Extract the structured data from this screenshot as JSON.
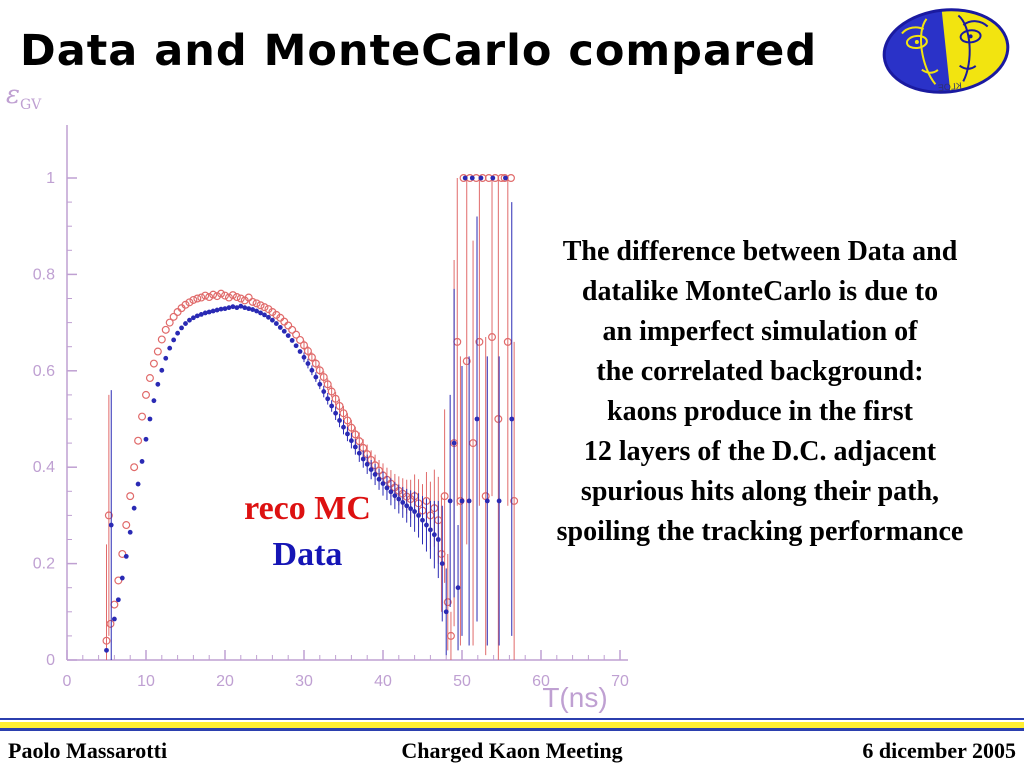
{
  "slide": {
    "title": "Data and MonteCarlo compared",
    "body_lines": [
      "The difference between Data and",
      "datalike MonteCarlo is due to",
      "an imperfect simulation of",
      "the correlated background:",
      "kaons produce in the first",
      "12 layers of the D.C. adjacent",
      "spurious hits along their path,",
      "spoiling the tracking performance"
    ],
    "footer": {
      "author": "Paolo Massarotti",
      "meeting": "Charged Kaon Meeting",
      "date": "6 dicember 2005"
    }
  },
  "legend": {
    "mc": "reco MC",
    "data": "Data"
  },
  "axis": {
    "ylabel_main": "ε",
    "ylabel_sub": "GV",
    "xlabel": "T(ns)"
  },
  "colors": {
    "mc_marker": "#e06a6a",
    "data_marker": "#2a2ab4",
    "axis": "#bfa0d2",
    "legend_mc": "#dd1111",
    "legend_data": "#1515b5",
    "rule_blue": "#2b3fae",
    "rule_yellow": "#ffee33"
  },
  "chart_data": {
    "type": "scatter",
    "title": "",
    "xlabel": "T(ns)",
    "ylabel": "epsilon_GV (efficiency)",
    "xlim": [
      0,
      70
    ],
    "ylim": [
      0,
      1
    ],
    "grid": false,
    "legend_position": "inside-center-left",
    "xticks": [
      0,
      10,
      20,
      30,
      40,
      50,
      60,
      70
    ],
    "yticks": [
      0,
      0.2,
      0.4,
      0.6,
      0.8,
      1
    ],
    "ytick_labels": [
      "0",
      "0.2",
      "0.4",
      "0.6",
      "0.8",
      "1"
    ],
    "series": [
      {
        "name": "reco MC",
        "marker": "open-circle",
        "color": "#e06a6a",
        "points": [
          [
            5,
            0.04,
            0.2
          ],
          [
            5.3,
            0.3,
            0.25
          ],
          [
            5.5,
            0.075,
            0
          ],
          [
            6,
            0.115,
            0
          ],
          [
            6.5,
            0.165,
            0
          ],
          [
            7,
            0.22,
            0
          ],
          [
            7.5,
            0.28,
            0
          ],
          [
            8,
            0.34,
            0
          ],
          [
            8.5,
            0.4,
            0
          ],
          [
            9,
            0.455,
            0
          ],
          [
            9.5,
            0.505,
            0
          ],
          [
            10,
            0.55,
            0
          ],
          [
            10.5,
            0.585,
            0
          ],
          [
            11,
            0.615,
            0
          ],
          [
            11.5,
            0.64,
            0
          ],
          [
            12,
            0.665,
            0
          ],
          [
            12.5,
            0.685,
            0
          ],
          [
            13,
            0.7,
            0
          ],
          [
            13.5,
            0.712,
            0
          ],
          [
            14,
            0.722,
            0
          ],
          [
            14.5,
            0.73,
            0
          ],
          [
            15,
            0.737,
            0
          ],
          [
            15.5,
            0.742,
            0
          ],
          [
            16,
            0.747,
            0
          ],
          [
            16.5,
            0.75,
            0
          ],
          [
            17,
            0.752,
            0
          ],
          [
            17.5,
            0.756,
            0
          ],
          [
            18,
            0.753,
            0
          ],
          [
            18.5,
            0.758,
            0
          ],
          [
            19,
            0.755,
            0
          ],
          [
            19.5,
            0.76,
            0
          ],
          [
            20,
            0.756,
            0
          ],
          [
            20.5,
            0.752,
            0
          ],
          [
            21,
            0.757,
            0
          ],
          [
            21.5,
            0.753,
            0
          ],
          [
            22,
            0.75,
            0
          ],
          [
            22.5,
            0.746,
            0
          ],
          [
            23,
            0.752,
            0
          ],
          [
            23.5,
            0.743,
            0
          ],
          [
            24,
            0.74,
            0
          ],
          [
            24.5,
            0.736,
            0
          ],
          [
            25,
            0.732,
            0
          ],
          [
            25.5,
            0.728,
            0
          ],
          [
            26,
            0.722,
            0
          ],
          [
            26.5,
            0.716,
            0
          ],
          [
            27,
            0.71,
            0
          ],
          [
            27.5,
            0.702,
            0
          ],
          [
            28,
            0.694,
            0
          ],
          [
            28.5,
            0.685,
            0
          ],
          [
            29,
            0.675,
            0
          ],
          [
            29.5,
            0.664,
            0
          ],
          [
            30,
            0.653,
            0.01
          ],
          [
            30.5,
            0.641,
            0.01
          ],
          [
            31,
            0.628,
            0.01
          ],
          [
            31.5,
            0.615,
            0.01
          ],
          [
            32,
            0.601,
            0.01
          ],
          [
            32.5,
            0.587,
            0.012
          ],
          [
            33,
            0.572,
            0.012
          ],
          [
            33.5,
            0.557,
            0.012
          ],
          [
            34,
            0.542,
            0.014
          ],
          [
            34.5,
            0.527,
            0.014
          ],
          [
            35,
            0.512,
            0.015
          ],
          [
            35.5,
            0.497,
            0.015
          ],
          [
            36,
            0.482,
            0.016
          ],
          [
            36.5,
            0.468,
            0.016
          ],
          [
            37,
            0.454,
            0.018
          ],
          [
            37.5,
            0.44,
            0.018
          ],
          [
            38,
            0.427,
            0.02
          ],
          [
            38.5,
            0.415,
            0.02
          ],
          [
            39,
            0.404,
            0.022
          ],
          [
            39.5,
            0.393,
            0.022
          ],
          [
            40,
            0.383,
            0.025
          ],
          [
            40.5,
            0.374,
            0.025
          ],
          [
            41,
            0.366,
            0.028
          ],
          [
            41.5,
            0.358,
            0.028
          ],
          [
            42,
            0.351,
            0.03
          ],
          [
            42.5,
            0.345,
            0.032
          ],
          [
            43,
            0.339,
            0.035
          ],
          [
            43.5,
            0.334,
            0.04
          ],
          [
            44,
            0.34,
            0.045
          ],
          [
            44.5,
            0.325,
            0.05
          ],
          [
            45,
            0.31,
            0.055
          ],
          [
            45.5,
            0.33,
            0.06
          ],
          [
            46,
            0.3,
            0.07
          ],
          [
            46.5,
            0.315,
            0.08
          ],
          [
            47,
            0.29,
            0.09
          ],
          [
            47.4,
            0.22,
            0.12
          ],
          [
            47.8,
            0.34,
            0.18
          ],
          [
            48.2,
            0.12,
            0.1
          ],
          [
            48.6,
            0.05,
            0.05
          ],
          [
            49,
            0.45,
            0.38
          ],
          [
            49.4,
            0.66,
            0.34
          ],
          [
            49.8,
            0.33,
            0.3
          ],
          [
            50.2,
            1,
            0
          ],
          [
            50.6,
            0.62,
            0.38
          ],
          [
            51,
            1,
            0
          ],
          [
            51.4,
            0.45,
            0.42
          ],
          [
            51.8,
            1,
            0
          ],
          [
            52.2,
            0.66,
            0.34
          ],
          [
            52.6,
            1,
            0
          ],
          [
            53,
            0.34,
            0.33
          ],
          [
            53.4,
            1,
            0
          ],
          [
            53.8,
            0.67,
            0.33
          ],
          [
            54.2,
            1,
            0
          ],
          [
            54.6,
            0.5,
            0.5
          ],
          [
            55,
            1,
            0
          ],
          [
            55.4,
            1,
            0
          ],
          [
            55.8,
            0.66,
            0.34
          ],
          [
            56.2,
            1,
            0
          ],
          [
            56.6,
            0.33,
            0.33
          ]
        ]
      },
      {
        "name": "Data",
        "marker": "filled-circle",
        "color": "#2a2ab4",
        "points": [
          [
            5,
            0.02,
            0
          ],
          [
            5.6,
            0.28,
            0.28
          ],
          [
            6,
            0.085,
            0
          ],
          [
            6.5,
            0.125,
            0
          ],
          [
            7,
            0.17,
            0
          ],
          [
            7.5,
            0.215,
            0
          ],
          [
            8,
            0.265,
            0
          ],
          [
            8.5,
            0.315,
            0
          ],
          [
            9,
            0.365,
            0
          ],
          [
            9.5,
            0.412,
            0
          ],
          [
            10,
            0.458,
            0
          ],
          [
            10.5,
            0.5,
            0
          ],
          [
            11,
            0.538,
            0
          ],
          [
            11.5,
            0.572,
            0
          ],
          [
            12,
            0.601,
            0
          ],
          [
            12.5,
            0.626,
            0
          ],
          [
            13,
            0.647,
            0
          ],
          [
            13.5,
            0.664,
            0
          ],
          [
            14,
            0.678,
            0
          ],
          [
            14.5,
            0.689,
            0
          ],
          [
            15,
            0.698,
            0
          ],
          [
            15.5,
            0.705,
            0
          ],
          [
            16,
            0.71,
            0
          ],
          [
            16.5,
            0.714,
            0
          ],
          [
            17,
            0.717,
            0
          ],
          [
            17.5,
            0.72,
            0
          ],
          [
            18,
            0.722,
            0
          ],
          [
            18.5,
            0.724,
            0
          ],
          [
            19,
            0.726,
            0
          ],
          [
            19.5,
            0.728,
            0
          ],
          [
            20,
            0.729,
            0
          ],
          [
            20.5,
            0.731,
            0
          ],
          [
            21,
            0.733,
            0
          ],
          [
            21.5,
            0.731,
            0
          ],
          [
            22,
            0.734,
            0
          ],
          [
            22.5,
            0.731,
            0
          ],
          [
            23,
            0.729,
            0
          ],
          [
            23.5,
            0.727,
            0
          ],
          [
            24,
            0.724,
            0
          ],
          [
            24.5,
            0.72,
            0
          ],
          [
            25,
            0.716,
            0
          ],
          [
            25.5,
            0.711,
            0
          ],
          [
            26,
            0.705,
            0
          ],
          [
            26.5,
            0.698,
            0
          ],
          [
            27,
            0.69,
            0
          ],
          [
            27.5,
            0.682,
            0
          ],
          [
            28,
            0.673,
            0
          ],
          [
            28.5,
            0.663,
            0
          ],
          [
            29,
            0.652,
            0
          ],
          [
            29.5,
            0.64,
            0
          ],
          [
            30,
            0.628,
            0.01
          ],
          [
            30.5,
            0.615,
            0.01
          ],
          [
            31,
            0.601,
            0.01
          ],
          [
            31.5,
            0.587,
            0.01
          ],
          [
            32,
            0.572,
            0.01
          ],
          [
            32.5,
            0.557,
            0.012
          ],
          [
            33,
            0.542,
            0.012
          ],
          [
            33.5,
            0.527,
            0.012
          ],
          [
            34,
            0.512,
            0.014
          ],
          [
            34.5,
            0.497,
            0.014
          ],
          [
            35,
            0.483,
            0.015
          ],
          [
            35.5,
            0.469,
            0.015
          ],
          [
            36,
            0.455,
            0.016
          ],
          [
            36.5,
            0.442,
            0.016
          ],
          [
            37,
            0.429,
            0.018
          ],
          [
            37.5,
            0.417,
            0.018
          ],
          [
            38,
            0.406,
            0.02
          ],
          [
            38.5,
            0.395,
            0.02
          ],
          [
            39,
            0.385,
            0.022
          ],
          [
            39.5,
            0.375,
            0.022
          ],
          [
            40,
            0.366,
            0.025
          ],
          [
            40.5,
            0.357,
            0.025
          ],
          [
            41,
            0.349,
            0.028
          ],
          [
            41.5,
            0.341,
            0.028
          ],
          [
            42,
            0.334,
            0.03
          ],
          [
            42.5,
            0.327,
            0.032
          ],
          [
            43,
            0.32,
            0.035
          ],
          [
            43.5,
            0.314,
            0.038
          ],
          [
            44,
            0.308,
            0.042
          ],
          [
            44.5,
            0.3,
            0.046
          ],
          [
            45,
            0.29,
            0.05
          ],
          [
            45.5,
            0.28,
            0.055
          ],
          [
            46,
            0.27,
            0.06
          ],
          [
            46.5,
            0.26,
            0.07
          ],
          [
            47,
            0.25,
            0.08
          ],
          [
            47.5,
            0.2,
            0.12
          ],
          [
            48,
            0.1,
            0.09
          ],
          [
            48.5,
            0.33,
            0.22
          ],
          [
            49,
            0.45,
            0.32
          ],
          [
            49.5,
            0.15,
            0.13
          ],
          [
            50,
            0.33,
            0.28
          ],
          [
            50.4,
            1,
            0
          ],
          [
            50.9,
            0.33,
            0.3
          ],
          [
            51.3,
            1,
            0
          ],
          [
            51.9,
            0.5,
            0.42
          ],
          [
            52.4,
            1,
            0
          ],
          [
            53.2,
            0.33,
            0.3
          ],
          [
            53.9,
            1,
            0
          ],
          [
            54.7,
            0.33,
            0.3
          ],
          [
            55.5,
            1,
            0
          ],
          [
            56.3,
            0.5,
            0.45
          ]
        ]
      }
    ]
  }
}
